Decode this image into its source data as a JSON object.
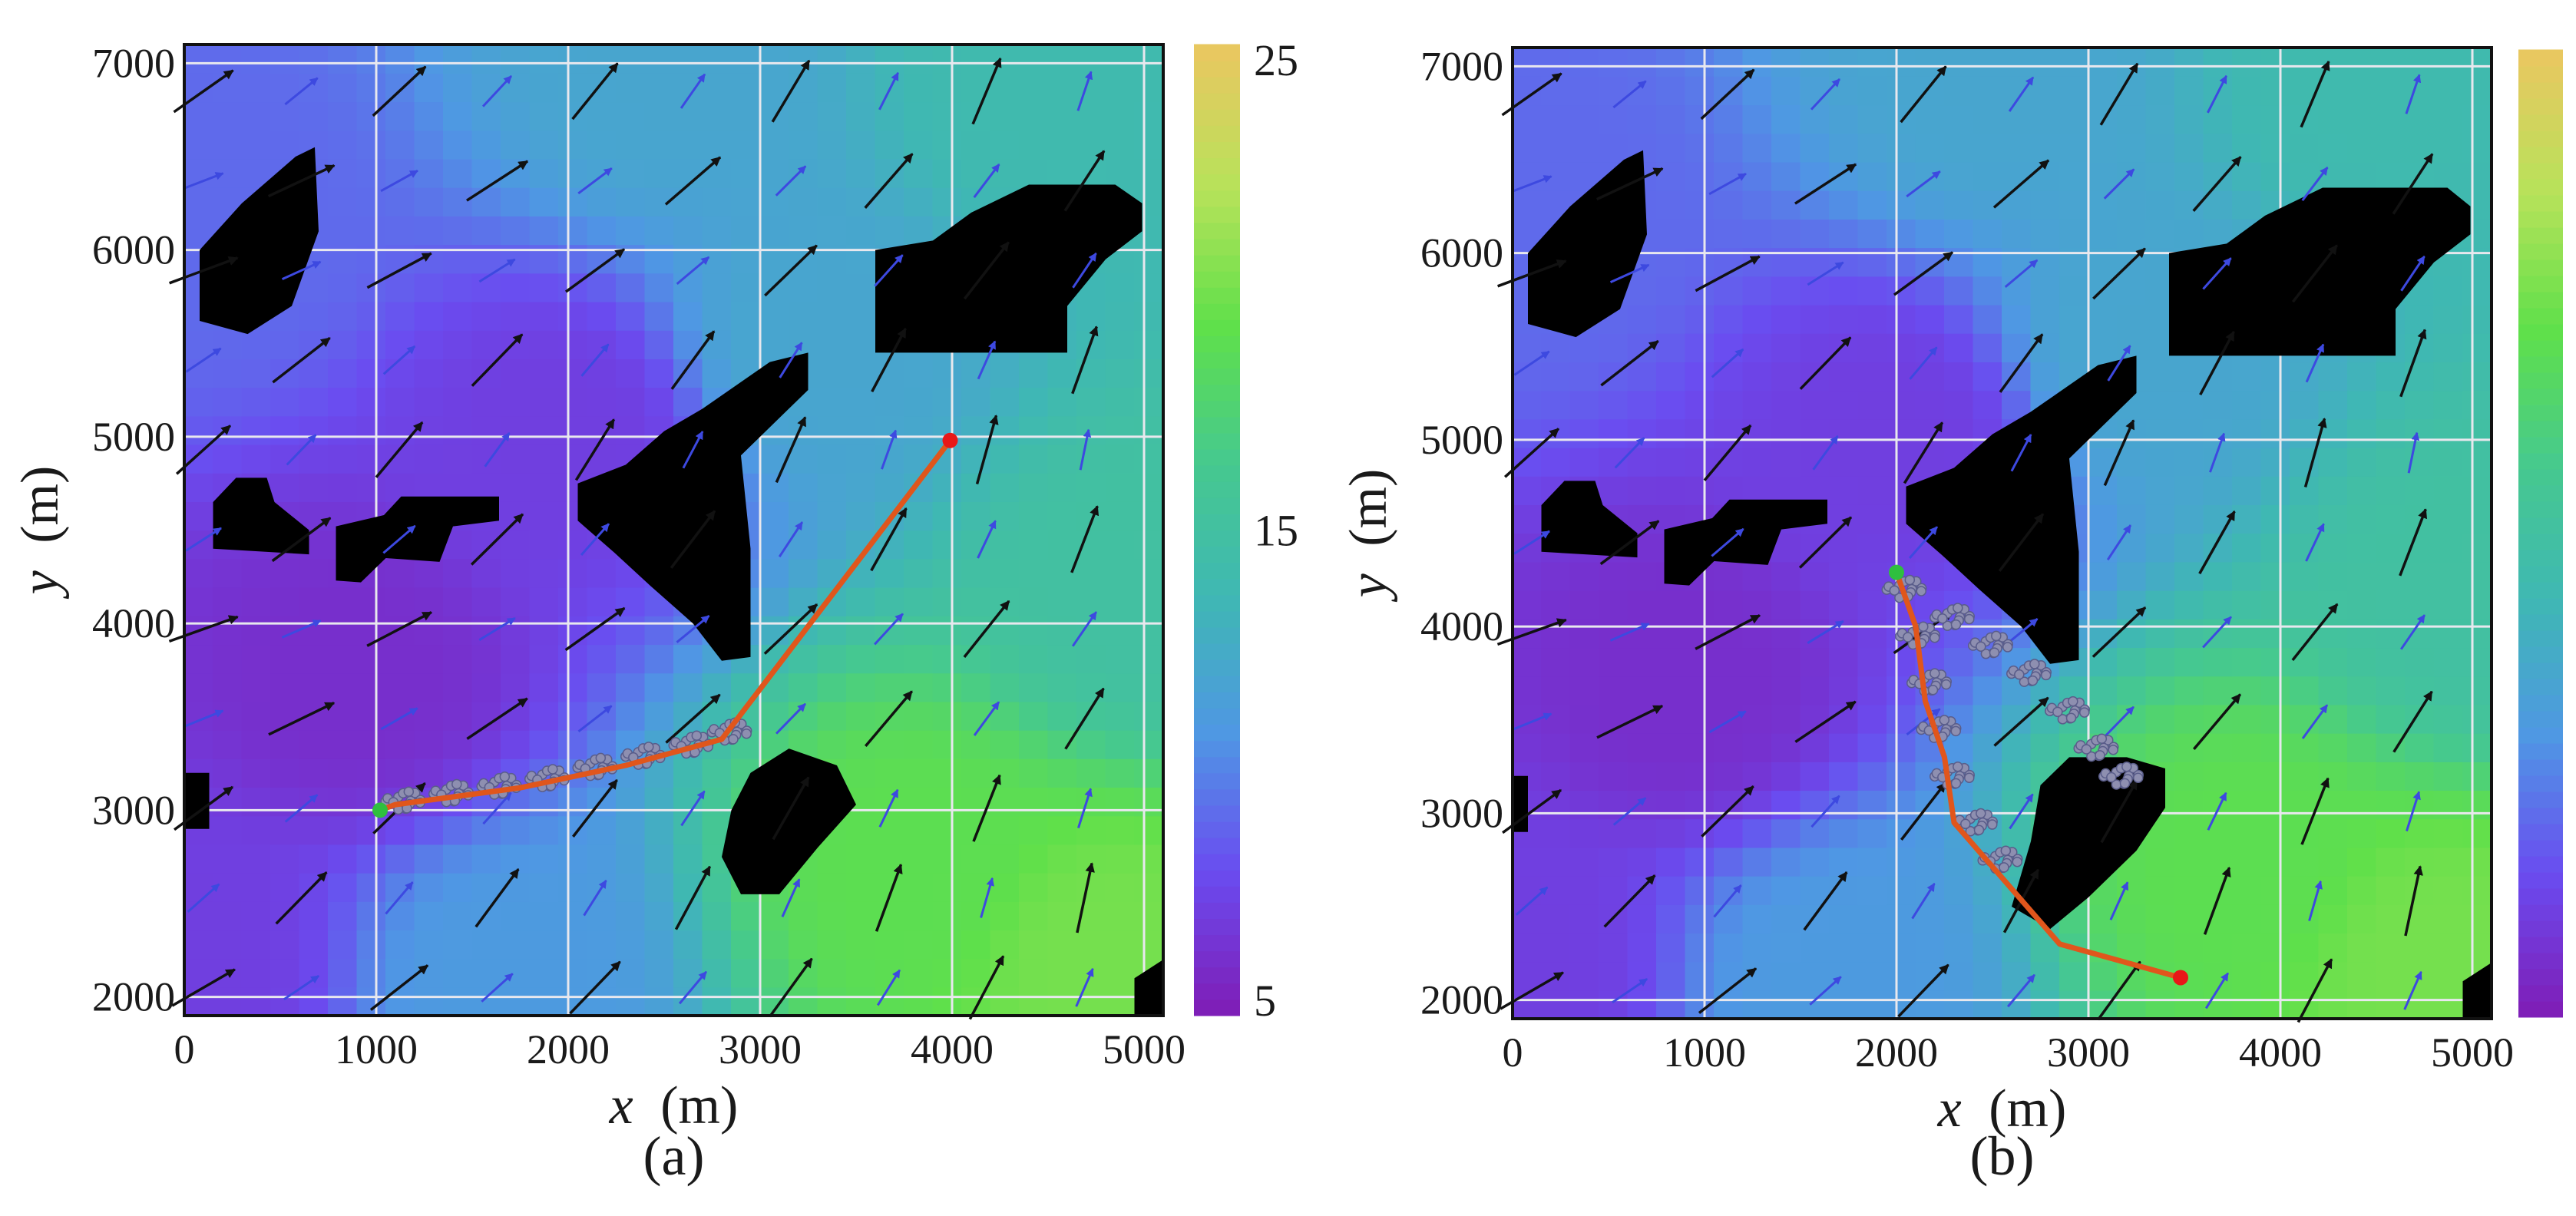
{
  "figure": {
    "panels": [
      "(a)",
      "(b)"
    ]
  },
  "chart_data": [
    {
      "type": "heatmap",
      "title": "",
      "panel_label": "(a)",
      "xlabel_var": "x",
      "xlabel_unit": "(m)",
      "ylabel_var": "y",
      "ylabel_unit": "(m)",
      "xlim": [
        0,
        5100
      ],
      "ylim": [
        1900,
        7100
      ],
      "xticks": [
        0,
        1000,
        2000,
        3000,
        4000,
        5000
      ],
      "xtick_labels": [
        "0",
        "1000",
        "2000",
        "3000",
        "4000",
        "5000"
      ],
      "yticks": [
        2000,
        3000,
        4000,
        5000,
        6000,
        7000
      ],
      "ytick_labels": [
        "2000",
        "3000",
        "4000",
        "5000",
        "6000",
        "7000"
      ],
      "grid": true,
      "colorbar": {
        "range": [
          5,
          25
        ],
        "ticks": [
          5,
          15,
          25
        ],
        "tick_labels": [
          "5",
          "15",
          "25"
        ],
        "colors": [
          "#7e1fb8",
          "#6a4cf0",
          "#4f97e4",
          "#3fb7b4",
          "#46c98e",
          "#5fe04a",
          "#b7e25a",
          "#e8c860"
        ]
      },
      "field": {
        "centers": [
          {
            "x": 0,
            "y": 2200,
            "v": 7
          },
          {
            "x": 900,
            "y": 3700,
            "v": 6
          },
          {
            "x": 2000,
            "y": 5000,
            "v": 7
          },
          {
            "x": 100,
            "y": 6200,
            "v": 9
          },
          {
            "x": 4800,
            "y": 2200,
            "v": 20
          },
          {
            "x": 3800,
            "y": 2700,
            "v": 19
          },
          {
            "x": 5000,
            "y": 4200,
            "v": 15
          },
          {
            "x": 4500,
            "y": 6900,
            "v": 14
          },
          {
            "x": 2500,
            "y": 7000,
            "v": 12
          },
          {
            "x": 1700,
            "y": 2100,
            "v": 11
          },
          {
            "x": 3300,
            "y": 5500,
            "v": 12
          }
        ]
      },
      "obstacles": [
        {
          "name": "obstacle-1",
          "points": [
            [
              80,
              5620
            ],
            [
              80,
              6000
            ],
            [
              300,
              6250
            ],
            [
              580,
              6500
            ],
            [
              680,
              6550
            ],
            [
              700,
              6100
            ],
            [
              560,
              5700
            ],
            [
              330,
              5550
            ]
          ]
        },
        {
          "name": "obstacle-2",
          "points": [
            [
              150,
              4650
            ],
            [
              150,
              4400
            ],
            [
              650,
              4370
            ],
            [
              650,
              4500
            ],
            [
              470,
              4650
            ],
            [
              430,
              4780
            ],
            [
              270,
              4780
            ]
          ]
        },
        {
          "name": "obstacle-3",
          "points": [
            [
              790,
              4230
            ],
            [
              790,
              4520
            ],
            [
              1040,
              4580
            ],
            [
              1130,
              4680
            ],
            [
              1640,
              4680
            ],
            [
              1640,
              4550
            ],
            [
              1400,
              4520
            ],
            [
              1330,
              4330
            ],
            [
              1050,
              4350
            ],
            [
              920,
              4220
            ]
          ]
        },
        {
          "name": "obstacle-4",
          "points": [
            [
              2050,
              4750
            ],
            [
              2050,
              4550
            ],
            [
              2240,
              4380
            ],
            [
              2430,
              4200
            ],
            [
              2650,
              4000
            ],
            [
              2800,
              3800
            ],
            [
              2950,
              3820
            ],
            [
              2950,
              4400
            ],
            [
              2900,
              4900
            ],
            [
              3100,
              5100
            ],
            [
              3250,
              5250
            ],
            [
              3250,
              5450
            ],
            [
              3050,
              5400
            ],
            [
              2700,
              5150
            ],
            [
              2500,
              5030
            ],
            [
              2300,
              4850
            ]
          ]
        },
        {
          "name": "obstacle-5",
          "points": [
            [
              2800,
              2750
            ],
            [
              2850,
              3000
            ],
            [
              2950,
              3200
            ],
            [
              3150,
              3330
            ],
            [
              3400,
              3240
            ],
            [
              3500,
              3030
            ],
            [
              3300,
              2800
            ],
            [
              3100,
              2550
            ],
            [
              2900,
              2550
            ]
          ]
        },
        {
          "name": "obstacle-6",
          "points": [
            [
              3600,
              5450
            ],
            [
              3600,
              6000
            ],
            [
              3900,
              6050
            ],
            [
              4100,
              6200
            ],
            [
              4400,
              6350
            ],
            [
              4850,
              6350
            ],
            [
              4990,
              6250
            ],
            [
              4990,
              6100
            ],
            [
              4800,
              5950
            ],
            [
              4600,
              5700
            ],
            [
              4600,
              5450
            ]
          ]
        },
        {
          "name": "obstacle-7",
          "points": [
            [
              0,
              2900
            ],
            [
              0,
              3200
            ],
            [
              130,
              3200
            ],
            [
              130,
              2900
            ]
          ]
        },
        {
          "name": "obstacle-8",
          "points": [
            [
              4950,
              1900
            ],
            [
              5100,
              1900
            ],
            [
              5100,
              2200
            ],
            [
              4950,
              2100
            ]
          ]
        }
      ],
      "vector_field": {
        "scale_note": "arrow direction from field, two magnitude classes"
      },
      "path": [
        [
          1020,
          3000
        ],
        [
          1100,
          3030
        ],
        [
          1750,
          3120
        ],
        [
          2300,
          3240
        ],
        [
          2800,
          3380
        ],
        [
          3990,
          4980
        ]
      ],
      "start": [
        1020,
        3000
      ],
      "goal": [
        3990,
        4980
      ],
      "particle_cloud": [
        [
          1150,
          3050
        ],
        [
          1400,
          3090
        ],
        [
          1650,
          3130
        ],
        [
          1900,
          3170
        ],
        [
          2150,
          3230
        ],
        [
          2400,
          3290
        ],
        [
          2650,
          3350
        ],
        [
          2850,
          3420
        ]
      ]
    },
    {
      "type": "heatmap",
      "title": "",
      "panel_label": "(b)",
      "xlabel_var": "x",
      "xlabel_unit": "(m)",
      "ylabel_var": "y",
      "ylabel_unit": "(m)",
      "xlim": [
        0,
        5100
      ],
      "ylim": [
        1900,
        7100
      ],
      "xticks": [
        0,
        1000,
        2000,
        3000,
        4000,
        5000
      ],
      "xtick_labels": [
        "0",
        "1000",
        "2000",
        "3000",
        "4000",
        "5000"
      ],
      "yticks": [
        2000,
        3000,
        4000,
        5000,
        6000,
        7000
      ],
      "ytick_labels": [
        "2000",
        "3000",
        "4000",
        "5000",
        "6000",
        "7000"
      ],
      "grid": true,
      "colorbar": {
        "range": [
          5,
          25
        ],
        "ticks": [],
        "tick_labels": [],
        "colors": [
          "#7e1fb8",
          "#6a4cf0",
          "#4f97e4",
          "#3fb7b4",
          "#46c98e",
          "#5fe04a",
          "#b7e25a",
          "#e8c860"
        ]
      },
      "field": {
        "centers": [
          {
            "x": 0,
            "y": 2200,
            "v": 7
          },
          {
            "x": 900,
            "y": 3700,
            "v": 6
          },
          {
            "x": 2000,
            "y": 5000,
            "v": 7
          },
          {
            "x": 100,
            "y": 6200,
            "v": 9
          },
          {
            "x": 4800,
            "y": 2200,
            "v": 20
          },
          {
            "x": 3800,
            "y": 2700,
            "v": 19
          },
          {
            "x": 5000,
            "y": 4200,
            "v": 15
          },
          {
            "x": 4500,
            "y": 6900,
            "v": 14
          },
          {
            "x": 2500,
            "y": 7000,
            "v": 12
          },
          {
            "x": 1700,
            "y": 2100,
            "v": 11
          },
          {
            "x": 3300,
            "y": 5500,
            "v": 12
          }
        ]
      },
      "obstacles": [
        {
          "name": "obstacle-1",
          "points": [
            [
              80,
              5620
            ],
            [
              80,
              6000
            ],
            [
              300,
              6250
            ],
            [
              580,
              6500
            ],
            [
              680,
              6550
            ],
            [
              700,
              6100
            ],
            [
              560,
              5700
            ],
            [
              330,
              5550
            ]
          ]
        },
        {
          "name": "obstacle-2",
          "points": [
            [
              150,
              4650
            ],
            [
              150,
              4400
            ],
            [
              650,
              4370
            ],
            [
              650,
              4500
            ],
            [
              470,
              4650
            ],
            [
              430,
              4780
            ],
            [
              270,
              4780
            ]
          ]
        },
        {
          "name": "obstacle-3",
          "points": [
            [
              790,
              4230
            ],
            [
              790,
              4520
            ],
            [
              1040,
              4580
            ],
            [
              1130,
              4680
            ],
            [
              1640,
              4680
            ],
            [
              1640,
              4550
            ],
            [
              1400,
              4520
            ],
            [
              1330,
              4330
            ],
            [
              1050,
              4350
            ],
            [
              920,
              4220
            ]
          ]
        },
        {
          "name": "obstacle-4",
          "points": [
            [
              2050,
              4750
            ],
            [
              2050,
              4550
            ],
            [
              2240,
              4380
            ],
            [
              2430,
              4200
            ],
            [
              2650,
              4000
            ],
            [
              2800,
              3800
            ],
            [
              2950,
              3820
            ],
            [
              2950,
              4400
            ],
            [
              2900,
              4900
            ],
            [
              3100,
              5100
            ],
            [
              3250,
              5250
            ],
            [
              3250,
              5450
            ],
            [
              3050,
              5400
            ],
            [
              2700,
              5150
            ],
            [
              2500,
              5030
            ],
            [
              2300,
              4850
            ]
          ]
        },
        {
          "name": "obstacle-5",
          "points": [
            [
              2600,
              2500
            ],
            [
              2700,
              2850
            ],
            [
              2750,
              3150
            ],
            [
              2900,
              3300
            ],
            [
              3200,
              3300
            ],
            [
              3400,
              3240
            ],
            [
              3400,
              3030
            ],
            [
              3250,
              2800
            ],
            [
              3000,
              2550
            ],
            [
              2800,
              2380
            ]
          ]
        },
        {
          "name": "obstacle-6",
          "points": [
            [
              3420,
              5450
            ],
            [
              3420,
              6000
            ],
            [
              3720,
              6050
            ],
            [
              3920,
              6200
            ],
            [
              4220,
              6350
            ],
            [
              4870,
              6350
            ],
            [
              4990,
              6250
            ],
            [
              4990,
              6100
            ],
            [
              4800,
              5950
            ],
            [
              4600,
              5700
            ],
            [
              4600,
              5450
            ]
          ]
        },
        {
          "name": "obstacle-7",
          "points": [
            [
              0,
              2900
            ],
            [
              0,
              3200
            ],
            [
              80,
              3200
            ],
            [
              80,
              2900
            ]
          ]
        },
        {
          "name": "obstacle-8",
          "points": [
            [
              4950,
              1900
            ],
            [
              5100,
              1900
            ],
            [
              5100,
              2200
            ],
            [
              4950,
              2100
            ]
          ]
        }
      ],
      "vector_field": {
        "scale_note": "arrow direction from field, two magnitude classes"
      },
      "path": [
        [
          3480,
          2120
        ],
        [
          2850,
          2300
        ],
        [
          2300,
          2950
        ],
        [
          2250,
          3300
        ],
        [
          2150,
          3600
        ],
        [
          2100,
          4000
        ],
        [
          2000,
          4290
        ]
      ],
      "start": [
        2000,
        4290
      ],
      "goal": [
        3480,
        2120
      ],
      "particle_cloud": [
        [
          2050,
          4200
        ],
        [
          2120,
          3950
        ],
        [
          2180,
          3700
        ],
        [
          2230,
          3450
        ],
        [
          2300,
          3200
        ],
        [
          2420,
          2950
        ],
        [
          2550,
          2750
        ],
        [
          2300,
          4050
        ],
        [
          2500,
          3900
        ],
        [
          2700,
          3750
        ],
        [
          2900,
          3550
        ],
        [
          3050,
          3350
        ],
        [
          3180,
          3200
        ]
      ]
    }
  ]
}
